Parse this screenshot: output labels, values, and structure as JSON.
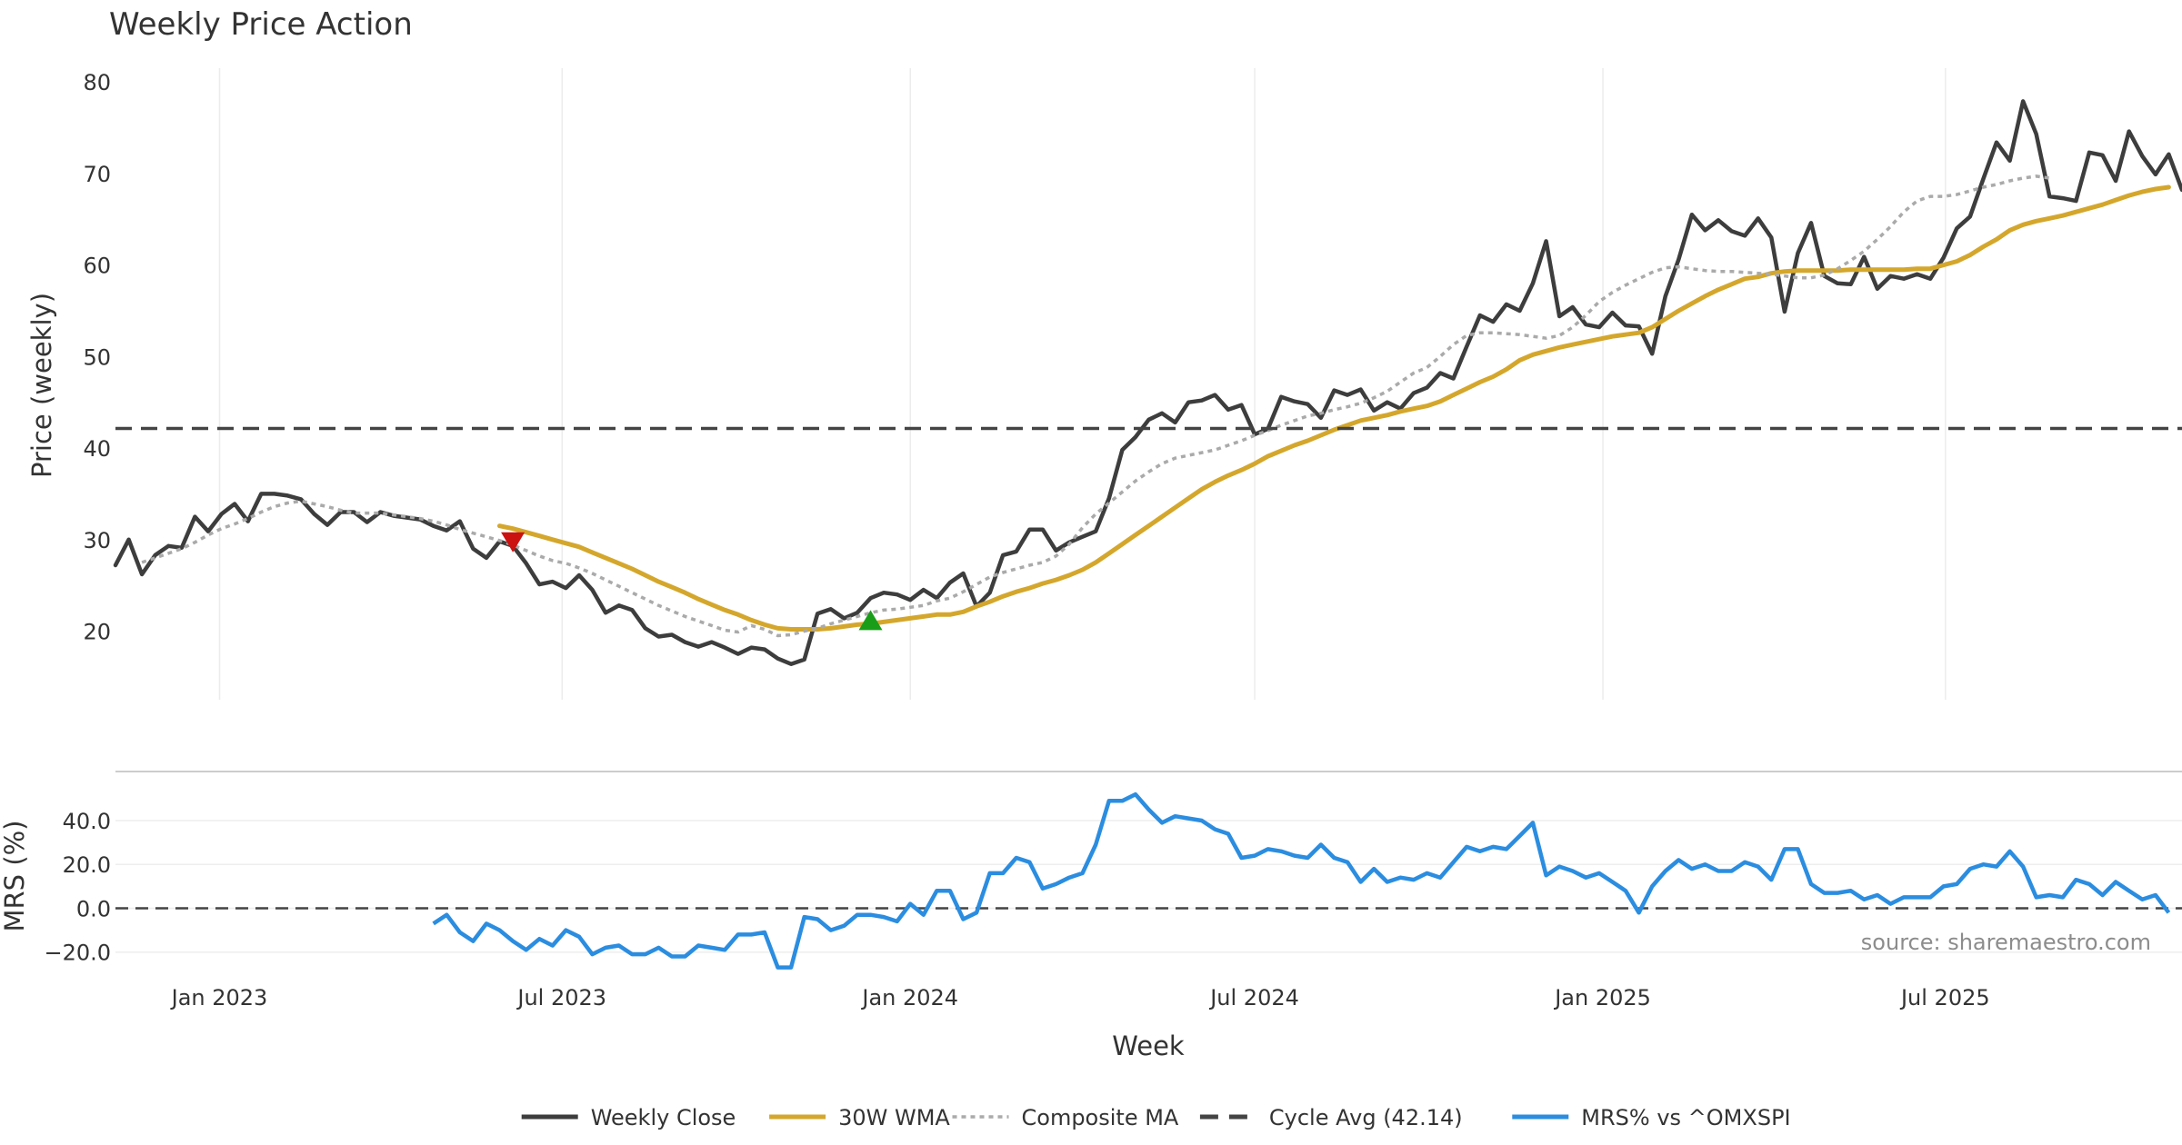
{
  "chart_data": [
    {
      "panel": "price",
      "type": "line",
      "title": "Weekly Price Action",
      "ylabel": "Price (weekly)",
      "xlabel": "Week",
      "ylim": [
        12.5,
        83
      ],
      "yticks": [
        20,
        30,
        40,
        50,
        60,
        70,
        80
      ],
      "xlim": [
        "2022-11-07",
        "2025-11-03"
      ],
      "xticks": [
        {
          "date": "2023-01-01",
          "label": "Jan 2023"
        },
        {
          "date": "2023-07-01",
          "label": "Jul 2023"
        },
        {
          "date": "2024-01-01",
          "label": "Jan 2024"
        },
        {
          "date": "2024-07-01",
          "label": "Jul 2024"
        },
        {
          "date": "2025-01-01",
          "label": "Jan 2025"
        },
        {
          "date": "2025-07-01",
          "label": "Jul 2025"
        }
      ],
      "grid": "vertical",
      "start_week": "2022-11-07",
      "series": [
        {
          "name": "Weekly Close",
          "color": "#3d3d3d",
          "style": "solid",
          "values": [
            27.2,
            30.0,
            26.2,
            28.3,
            29.3,
            29.1,
            32.5,
            30.9,
            32.8,
            33.9,
            32.0,
            35.0,
            35.0,
            34.8,
            34.4,
            32.8,
            31.6,
            33.0,
            33.0,
            31.9,
            33.0,
            32.6,
            32.4,
            32.2,
            31.5,
            31.0,
            32.0,
            29.0,
            28.0,
            29.8,
            29.3,
            27.4,
            25.1,
            25.4,
            24.7,
            26.1,
            24.5,
            22.0,
            22.8,
            22.3,
            20.3,
            19.4,
            19.6,
            18.8,
            18.3,
            18.8,
            18.2,
            17.5,
            18.2,
            18.0,
            17.0,
            16.4,
            16.9,
            21.9,
            22.4,
            21.4,
            22.0,
            23.6,
            24.2,
            24.0,
            23.4,
            24.5,
            23.6,
            25.3,
            26.3,
            22.7,
            24.2,
            28.3,
            28.7,
            31.1,
            31.1,
            28.8,
            29.7,
            30.3,
            30.9,
            34.5,
            39.8,
            41.2,
            43.1,
            43.8,
            42.8,
            45.0,
            45.2,
            45.8,
            44.2,
            44.7,
            41.5,
            42.1,
            45.6,
            45.1,
            44.8,
            43.3,
            46.3,
            45.8,
            46.4,
            44.1,
            45.0,
            44.3,
            46.0,
            46.6,
            48.2,
            47.6,
            51.1,
            54.5,
            53.8,
            55.7,
            55.0,
            58.0,
            62.6,
            54.4,
            55.4,
            53.5,
            53.2,
            54.8,
            53.4,
            53.3,
            50.3,
            56.6,
            60.6,
            65.5,
            63.8,
            64.9,
            63.7,
            63.2,
            65.1,
            63.0,
            54.9,
            61.3,
            64.6,
            58.8,
            58.0,
            57.9,
            60.9,
            57.4,
            58.8,
            58.5,
            59.0,
            58.5,
            60.8,
            64.0,
            65.3,
            69.4,
            73.4,
            71.4,
            77.9,
            74.3,
            67.5,
            67.3,
            67.0,
            72.3,
            72.0,
            69.2,
            74.6,
            71.9,
            69.9,
            72.1,
            68.2
          ]
        },
        {
          "name": "30W WMA",
          "color": "#d4a72c",
          "style": "solid",
          "start_index": 29,
          "values": [
            31.5,
            31.2,
            30.8,
            30.4,
            30.0,
            29.6,
            29.2,
            28.6,
            28.0,
            27.4,
            26.8,
            26.1,
            25.4,
            24.8,
            24.2,
            23.5,
            22.9,
            22.3,
            21.8,
            21.2,
            20.7,
            20.3,
            20.2,
            20.2,
            20.2,
            20.3,
            20.5,
            20.7,
            20.8,
            21.0,
            21.2,
            21.4,
            21.6,
            21.8,
            21.8,
            22.1,
            22.7,
            23.2,
            23.8,
            24.3,
            24.7,
            25.2,
            25.6,
            26.1,
            26.7,
            27.5,
            28.5,
            29.5,
            30.5,
            31.5,
            32.5,
            33.5,
            34.5,
            35.5,
            36.3,
            37.0,
            37.6,
            38.3,
            39.1,
            39.7,
            40.3,
            40.8,
            41.4,
            42.0,
            42.5,
            43.0,
            43.3,
            43.6,
            44.0,
            44.3,
            44.6,
            45.1,
            45.8,
            46.5,
            47.2,
            47.8,
            48.6,
            49.6,
            50.2,
            50.6,
            51.0,
            51.3,
            51.6,
            51.9,
            52.2,
            52.4,
            52.6,
            53.2,
            54.1,
            55.0,
            55.8,
            56.6,
            57.3,
            57.9,
            58.5,
            58.7,
            59.1,
            59.3,
            59.4,
            59.4,
            59.4,
            59.4,
            59.5,
            59.5,
            59.5,
            59.5,
            59.5,
            59.6,
            59.6,
            60.0,
            60.4,
            61.1,
            62.0,
            62.8,
            63.8,
            64.4,
            64.8,
            65.1,
            65.4,
            65.8,
            66.2,
            66.6,
            67.1,
            67.6,
            68.0,
            68.3,
            68.5
          ]
        },
        {
          "name": "Composite MA",
          "color": "#aaaaaa",
          "style": "dotted",
          "start_index": 2,
          "values": [
            27.5,
            28.0,
            28.5,
            29.0,
            29.7,
            30.5,
            31.2,
            31.7,
            32.3,
            33.0,
            33.6,
            34.0,
            34.2,
            33.9,
            33.6,
            33.2,
            32.9,
            32.9,
            32.9,
            32.7,
            32.5,
            32.3,
            32.0,
            31.6,
            31.1,
            30.7,
            30.3,
            29.9,
            29.4,
            28.8,
            28.2,
            27.7,
            27.4,
            26.9,
            26.3,
            25.6,
            24.9,
            24.2,
            23.5,
            22.8,
            22.2,
            21.6,
            21.1,
            20.6,
            20.1,
            19.9,
            20.6,
            20.2,
            19.5,
            19.6,
            20.0,
            20.3,
            20.8,
            21.2,
            21.6,
            22.0,
            22.3,
            22.4,
            22.6,
            22.8,
            23.3,
            23.6,
            24.3,
            25.1,
            25.9,
            26.4,
            26.8,
            27.2,
            27.5,
            28.2,
            29.5,
            31.3,
            32.8,
            34.0,
            35.2,
            36.4,
            37.4,
            38.3,
            38.9,
            39.2,
            39.5,
            39.8,
            40.3,
            40.8,
            41.4,
            41.9,
            42.5,
            43.0,
            43.5,
            43.8,
            44.2,
            44.5,
            44.9,
            45.5,
            46.2,
            47.2,
            48.2,
            48.8,
            50.0,
            51.3,
            52.3,
            52.6,
            52.6,
            52.5,
            52.4,
            52.2,
            52.0,
            52.3,
            53.2,
            54.5,
            56.0,
            57.0,
            57.8,
            58.5,
            59.2,
            59.7,
            59.8,
            59.6,
            59.4,
            59.3,
            59.3,
            59.2,
            59.1,
            59.0,
            58.8,
            58.6,
            58.6,
            58.9,
            59.6,
            60.5,
            61.5,
            62.8,
            64.2,
            65.8,
            67.0,
            67.5,
            67.5,
            67.7,
            68.1,
            68.5,
            68.8,
            69.2,
            69.5,
            69.7,
            69.5
          ]
        },
        {
          "name": "Cycle Avg (42.14)",
          "color": "#444444",
          "style": "dashed",
          "value": 42.14
        }
      ],
      "markers": [
        {
          "type": "sell",
          "shape": "triangle-down",
          "color": "#cc1111",
          "week_index": 30,
          "value": 29.7
        },
        {
          "type": "buy",
          "shape": "triangle-up",
          "color": "#1a9e1a",
          "week_index": 57,
          "value": 21.2
        }
      ]
    },
    {
      "panel": "mrs",
      "type": "line",
      "ylabel": "MRS (%)",
      "ylim": [
        -28,
        57
      ],
      "yticks": [
        {
          "value": 40,
          "label": "40.0"
        },
        {
          "value": 20,
          "label": "20.0"
        },
        {
          "value": 0,
          "label": "0.0"
        },
        {
          "value": -20,
          "label": "−20.0"
        }
      ],
      "zero_line": 0,
      "series": [
        {
          "name": "MRS% vs ^OMXSPI",
          "color": "#2b8de0",
          "style": "solid",
          "start_index": 24,
          "values": [
            -7,
            -3,
            -11,
            -15,
            -7,
            -10,
            -15,
            -19,
            -14,
            -17,
            -10,
            -13,
            -21,
            -18,
            -17,
            -21,
            -21,
            -18,
            -22,
            -22,
            -17,
            -18,
            -19,
            -12,
            -12,
            -11,
            -27,
            -27,
            -4,
            -5,
            -10,
            -8,
            -3,
            -3,
            -4,
            -6,
            2,
            -3,
            8,
            8,
            -5,
            -2,
            16,
            16,
            23,
            21,
            9,
            11,
            14,
            16,
            29,
            49,
            49,
            52,
            45,
            39,
            42,
            41,
            40,
            36,
            34,
            23,
            24,
            27,
            26,
            24,
            23,
            29,
            23,
            21,
            12,
            18,
            12,
            14,
            13,
            16,
            14,
            21,
            28,
            26,
            28,
            27,
            33,
            39,
            15,
            19,
            17,
            14,
            16,
            12,
            8,
            -2,
            10,
            17,
            22,
            18,
            20,
            17,
            17,
            21,
            19,
            13,
            27,
            27,
            11,
            7,
            7,
            8,
            4,
            6,
            2,
            5,
            5,
            5,
            10,
            11,
            18,
            20,
            19,
            26,
            19,
            5,
            6,
            5,
            13,
            11,
            6,
            12,
            8,
            4,
            6,
            -2
          ]
        }
      ]
    }
  ],
  "source_text": "source: sharemaestro.com",
  "legend": {
    "placement": "bottom-center",
    "items": [
      {
        "label": "Weekly Close",
        "color": "#3d3d3d",
        "style": "solid"
      },
      {
        "label": "30W WMA",
        "color": "#d4a72c",
        "style": "solid"
      },
      {
        "label": "Composite MA",
        "color": "#aaaaaa",
        "style": "dotted"
      },
      {
        "label": "Cycle Avg (42.14)",
        "color": "#444444",
        "style": "dashed"
      },
      {
        "label": "MRS% vs ^OMXSPI",
        "color": "#2b8de0",
        "style": "solid"
      }
    ]
  }
}
